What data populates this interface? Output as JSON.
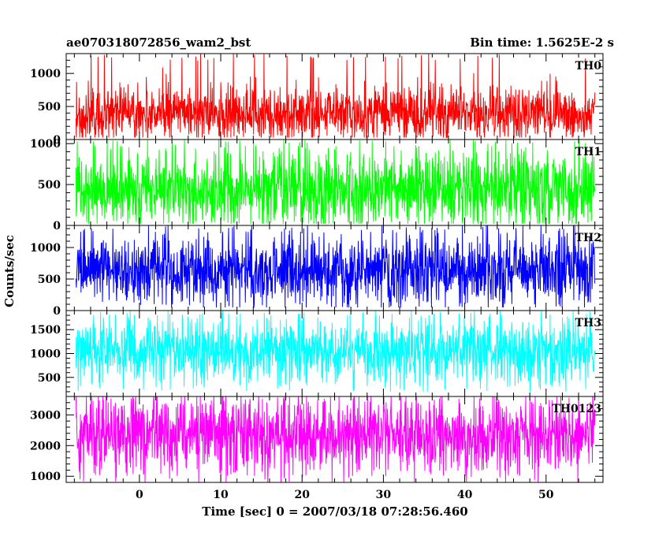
{
  "chart_data": {
    "type": "line",
    "title": "ae070318072856_wam2_bst",
    "subtitle": "Bin time: 1.5625E-2 s",
    "xlabel": "Time [sec] 0 = 2007/03/18 07:28:56.460",
    "ylabel": "Counts/sec",
    "xlim": [
      -9,
      57
    ],
    "xticks": [
      0,
      10,
      20,
      30,
      40,
      50
    ],
    "xtick_labels": [
      "0",
      "10",
      "20",
      "30",
      "40",
      "50"
    ],
    "x_range": [
      -7.8,
      56
    ],
    "bin_time": 0.015625,
    "grid": false,
    "panels": [
      {
        "name": "TH0",
        "color": "#ff0000",
        "ylim": [
          0,
          1300
        ],
        "yticks": [
          0,
          500,
          1000
        ],
        "ytick_labels": [
          "0",
          "500",
          "1000"
        ],
        "mean": 400,
        "low": 30,
        "high": 1300,
        "spread": 200
      },
      {
        "name": "TH1",
        "color": "#00ff00",
        "ylim": [
          0,
          1050
        ],
        "yticks": [
          0,
          500,
          1000
        ],
        "ytick_labels": [
          "0",
          "500",
          "1000"
        ],
        "mean": 450,
        "low": 20,
        "high": 1050,
        "spread": 230
      },
      {
        "name": "TH2",
        "color": "#0000ff",
        "ylim": [
          0,
          1350
        ],
        "yticks": [
          0,
          500,
          1000
        ],
        "ytick_labels": [
          "0",
          "500",
          "1000"
        ],
        "mean": 650,
        "low": 50,
        "high": 1350,
        "spread": 270
      },
      {
        "name": "TH3",
        "color": "#00ffff",
        "ylim": [
          100,
          1900
        ],
        "yticks": [
          500,
          1000,
          1500
        ],
        "ytick_labels": [
          "500",
          "1000",
          "1500"
        ],
        "mean": 1050,
        "low": 200,
        "high": 1900,
        "spread": 330
      },
      {
        "name": "TH0123",
        "color": "#ff00ff",
        "ylim": [
          800,
          3600
        ],
        "yticks": [
          1000,
          2000,
          3000
        ],
        "ytick_labels": [
          "1000",
          "2000",
          "3000"
        ],
        "mean": 2350,
        "low": 800,
        "high": 3600,
        "spread": 600
      }
    ]
  }
}
